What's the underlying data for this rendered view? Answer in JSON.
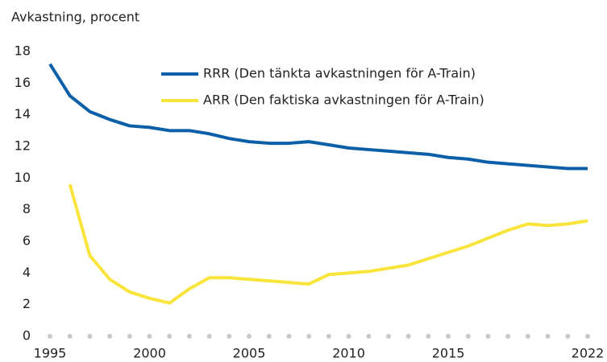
{
  "chart_data": {
    "type": "line",
    "y_axis_label": "Avkastning, procent",
    "x": [
      1995,
      1996,
      1997,
      1998,
      1999,
      2000,
      2001,
      2002,
      2003,
      2004,
      2005,
      2006,
      2007,
      2008,
      2009,
      2010,
      2011,
      2012,
      2013,
      2014,
      2015,
      2016,
      2017,
      2018,
      2019,
      2020,
      2021,
      2022
    ],
    "series": [
      {
        "name": "RRR (Den tänkta avkastningen för A-Train)",
        "color": "#0a5fa8",
        "values": [
          17.2,
          15.2,
          14.2,
          13.7,
          13.3,
          13.2,
          13.0,
          13.0,
          12.8,
          12.5,
          12.3,
          12.2,
          12.2,
          12.3,
          12.1,
          11.9,
          11.8,
          11.7,
          11.6,
          11.5,
          11.3,
          11.2,
          11.0,
          10.9,
          10.8,
          10.7,
          10.6,
          10.6
        ]
      },
      {
        "name": "ARR (Den faktiska avkastningen för A-Train)",
        "color": "#f9e43b",
        "values": [
          null,
          9.6,
          5.1,
          3.6,
          2.8,
          2.4,
          2.1,
          3.0,
          3.7,
          3.7,
          3.6,
          3.5,
          3.4,
          3.3,
          3.9,
          4.0,
          4.1,
          4.3,
          4.5,
          4.9,
          5.3,
          5.7,
          6.2,
          6.7,
          7.1,
          7.0,
          7.1,
          7.3
        ]
      }
    ],
    "xlim": [
      1995,
      2022
    ],
    "xticks": [
      1995,
      2000,
      2005,
      2010,
      2015,
      2022
    ],
    "ylim": [
      0,
      18
    ],
    "yticks": [
      0,
      2,
      4,
      6,
      8,
      10,
      12,
      14,
      16,
      18
    ],
    "grid": false,
    "legend": "top-right"
  }
}
